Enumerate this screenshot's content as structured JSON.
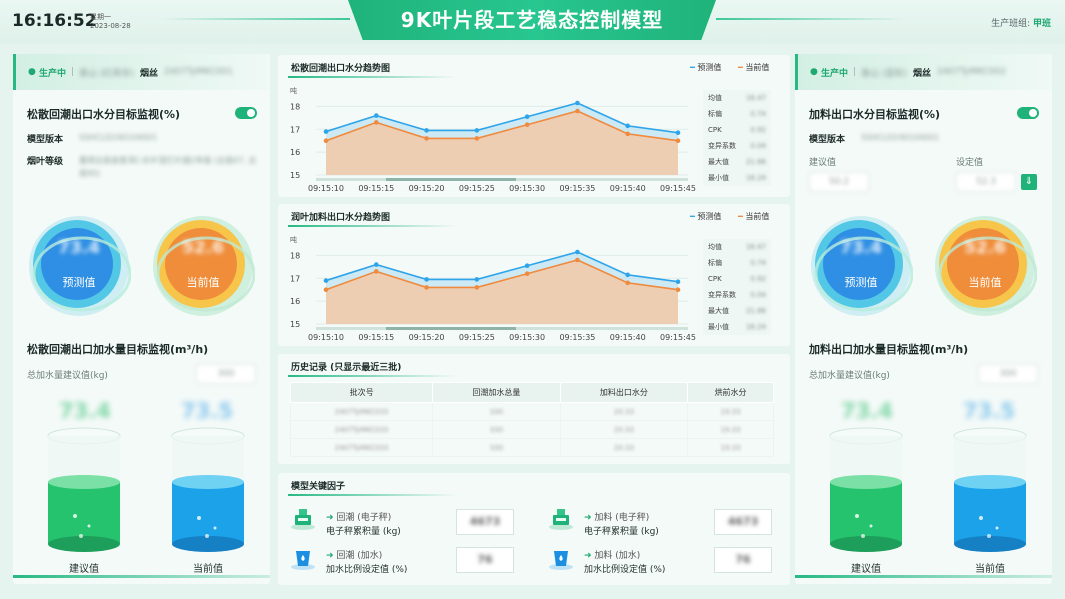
{
  "header": {
    "clock": "16:16:52",
    "weekday": "星期一",
    "date": "2023-08-28",
    "title": "9K叶片段工艺稳态控制模型",
    "team_label": "生产班组:",
    "team_value": "甲班"
  },
  "left": {
    "status": "生产中",
    "tag1": "泰山 (红库存)",
    "product": "烟丝",
    "batch": "2407TyMKC001",
    "monitor_title": "松散回潮出口水分目标监视(%)",
    "model_version_label": "模型版本",
    "model_version_value": "SSHCLD240104001",
    "grade_label": "烟叶等级",
    "grade_value": "重烤云南省普洱C-B3F混打片烟2年级 (云南07, 云南95)",
    "orb_pred_value": "73.4",
    "orb_pred_label": "预测值",
    "orb_cur_value": "52.6",
    "orb_cur_label": "当前值",
    "water_title": "松散回潮出口加水量目标监视(m³/h)",
    "total_label": "总加水量建议值(kg)",
    "total_value": "300",
    "big_left": "73.4",
    "big_right": "73.5",
    "cyl_left": "建议值",
    "cyl_right": "当前值"
  },
  "right": {
    "status": "生产中",
    "tag1": "泰山 (蓝标)",
    "product": "烟丝",
    "batch": "2407TyMKC002",
    "monitor_title": "加料出口水分目标监视(%)",
    "model_version_label": "模型版本",
    "model_version_value": "SSHCLD240104001",
    "suggest_label": "建议值",
    "suggest_value": "50.2",
    "set_label": "设定值",
    "set_value": "52.3",
    "orb_pred_value": "73.4",
    "orb_pred_label": "预测值",
    "orb_cur_value": "52.6",
    "orb_cur_label": "当前值",
    "water_title": "加料出口加水量目标监视(m³/h)",
    "total_label": "总加水量建议值(kg)",
    "total_value": "300",
    "big_left": "73.4",
    "big_right": "73.5",
    "cyl_left": "建议值",
    "cyl_right": "当前值"
  },
  "chart1": {
    "title": "松散回潮出口水分趋势图",
    "legend_pred": "预测值",
    "legend_cur": "当前值"
  },
  "chart2": {
    "title": "润叶加料出口水分趋势图",
    "legend_pred": "预测值",
    "legend_cur": "当前值"
  },
  "stats": [
    {
      "label": "均值",
      "value": "16.47"
    },
    {
      "label": "标偏",
      "value": "0.74"
    },
    {
      "label": "CPK",
      "value": "0.92"
    },
    {
      "label": "变异系数",
      "value": "0.04"
    },
    {
      "label": "最大值",
      "value": "21.66"
    },
    {
      "label": "最小值",
      "value": "16.24"
    }
  ],
  "chart_data": [
    {
      "type": "area",
      "title": "松散回潮出口水分趋势图",
      "ylabel": "吨",
      "x": [
        "09:15:10",
        "09:15:15",
        "09:15:20",
        "09:15:25",
        "09:15:30",
        "09:15:35",
        "09:15:40",
        "09:15:45"
      ],
      "ylim": [
        15,
        18.5
      ],
      "yticks": [
        15,
        16,
        17,
        18
      ],
      "series": [
        {
          "name": "预测值",
          "color": "#2ea4ea",
          "values": [
            16.9,
            17.6,
            16.95,
            16.95,
            17.55,
            18.15,
            17.15,
            16.85
          ]
        },
        {
          "name": "当前值",
          "color": "#ef8a3e",
          "values": [
            16.5,
            17.3,
            16.6,
            16.6,
            17.2,
            17.8,
            16.8,
            16.5
          ]
        }
      ]
    },
    {
      "type": "area",
      "title": "润叶加料出口水分趋势图",
      "ylabel": "吨",
      "x": [
        "09:15:10",
        "09:15:15",
        "09:15:20",
        "09:15:25",
        "09:15:30",
        "09:15:35",
        "09:15:40",
        "09:15:45"
      ],
      "ylim": [
        15,
        18.5
      ],
      "yticks": [
        15,
        16,
        17,
        18
      ],
      "series": [
        {
          "name": "预测值",
          "color": "#2ea4ea",
          "values": [
            16.9,
            17.6,
            16.95,
            16.95,
            17.55,
            18.15,
            17.15,
            16.85
          ]
        },
        {
          "name": "当前值",
          "color": "#ef8a3e",
          "values": [
            16.5,
            17.3,
            16.6,
            16.6,
            17.2,
            17.8,
            16.8,
            16.5
          ]
        }
      ]
    }
  ],
  "history": {
    "title": "历史记录 (只显示最近三批)",
    "headers": [
      "批次号",
      "回潮加水总量",
      "加料出口水分",
      "烘前水分"
    ],
    "rows": [
      [
        "2407TyMKC033",
        "330",
        "20.33",
        "19.33"
      ],
      [
        "2407TyMKC033",
        "330",
        "20.33",
        "19.33"
      ],
      [
        "2407TyMKC033",
        "330",
        "20.33",
        "19.33"
      ]
    ]
  },
  "factors": {
    "title": "模型关键因子",
    "items": [
      {
        "top": "回潮 (电子秤)",
        "bottom": "电子秤累积量 (kg)",
        "value": "4673"
      },
      {
        "top": "加料 (电子秤)",
        "bottom": "电子秤累积量 (kg)",
        "value": "4673"
      },
      {
        "top": "回潮 (加水)",
        "bottom": "加水比例设定值 (%)",
        "value": "76"
      },
      {
        "top": "加料 (加水)",
        "bottom": "加水比例设定值 (%)",
        "value": "76"
      }
    ]
  }
}
